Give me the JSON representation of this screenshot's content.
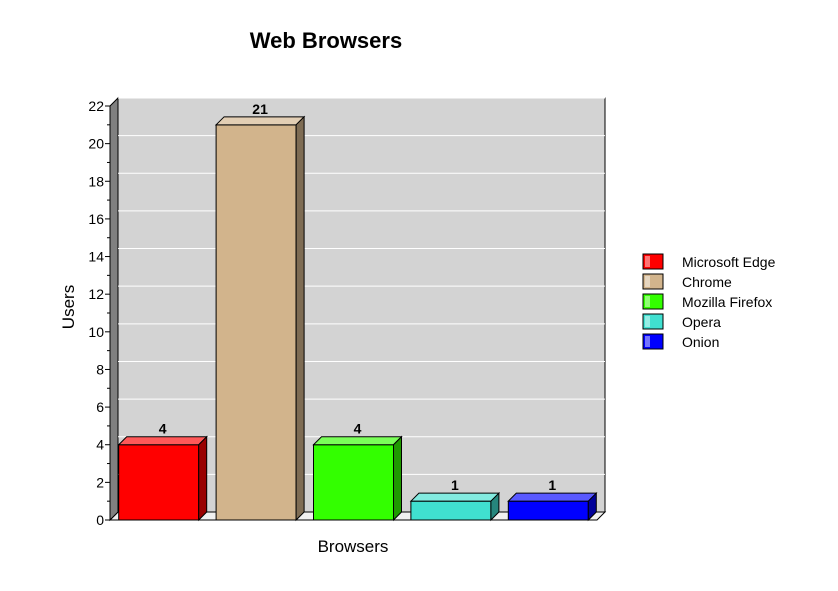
{
  "chart_data": {
    "type": "bar",
    "title": "Web Browsers",
    "xlabel": "Browsers",
    "ylabel": "Users",
    "categories": [
      "Microsoft Edge",
      "Chrome",
      "Mozilla Firefox",
      "Opera",
      "Onion"
    ],
    "values": [
      4,
      21,
      4,
      1,
      1
    ],
    "data_labels": [
      "4",
      "21",
      "4",
      "1",
      "1"
    ],
    "ylim": [
      0,
      22
    ],
    "yticks": [
      "0",
      "2",
      "4",
      "6",
      "8",
      "10",
      "12",
      "14",
      "16",
      "18",
      "20",
      "22"
    ],
    "grid": true,
    "legend_position": "right",
    "colors": [
      "#ff0000",
      "#d2b48c",
      "#33ff00",
      "#40e0d0",
      "#0000ff"
    ],
    "plot_background": "#d3d3d3"
  }
}
